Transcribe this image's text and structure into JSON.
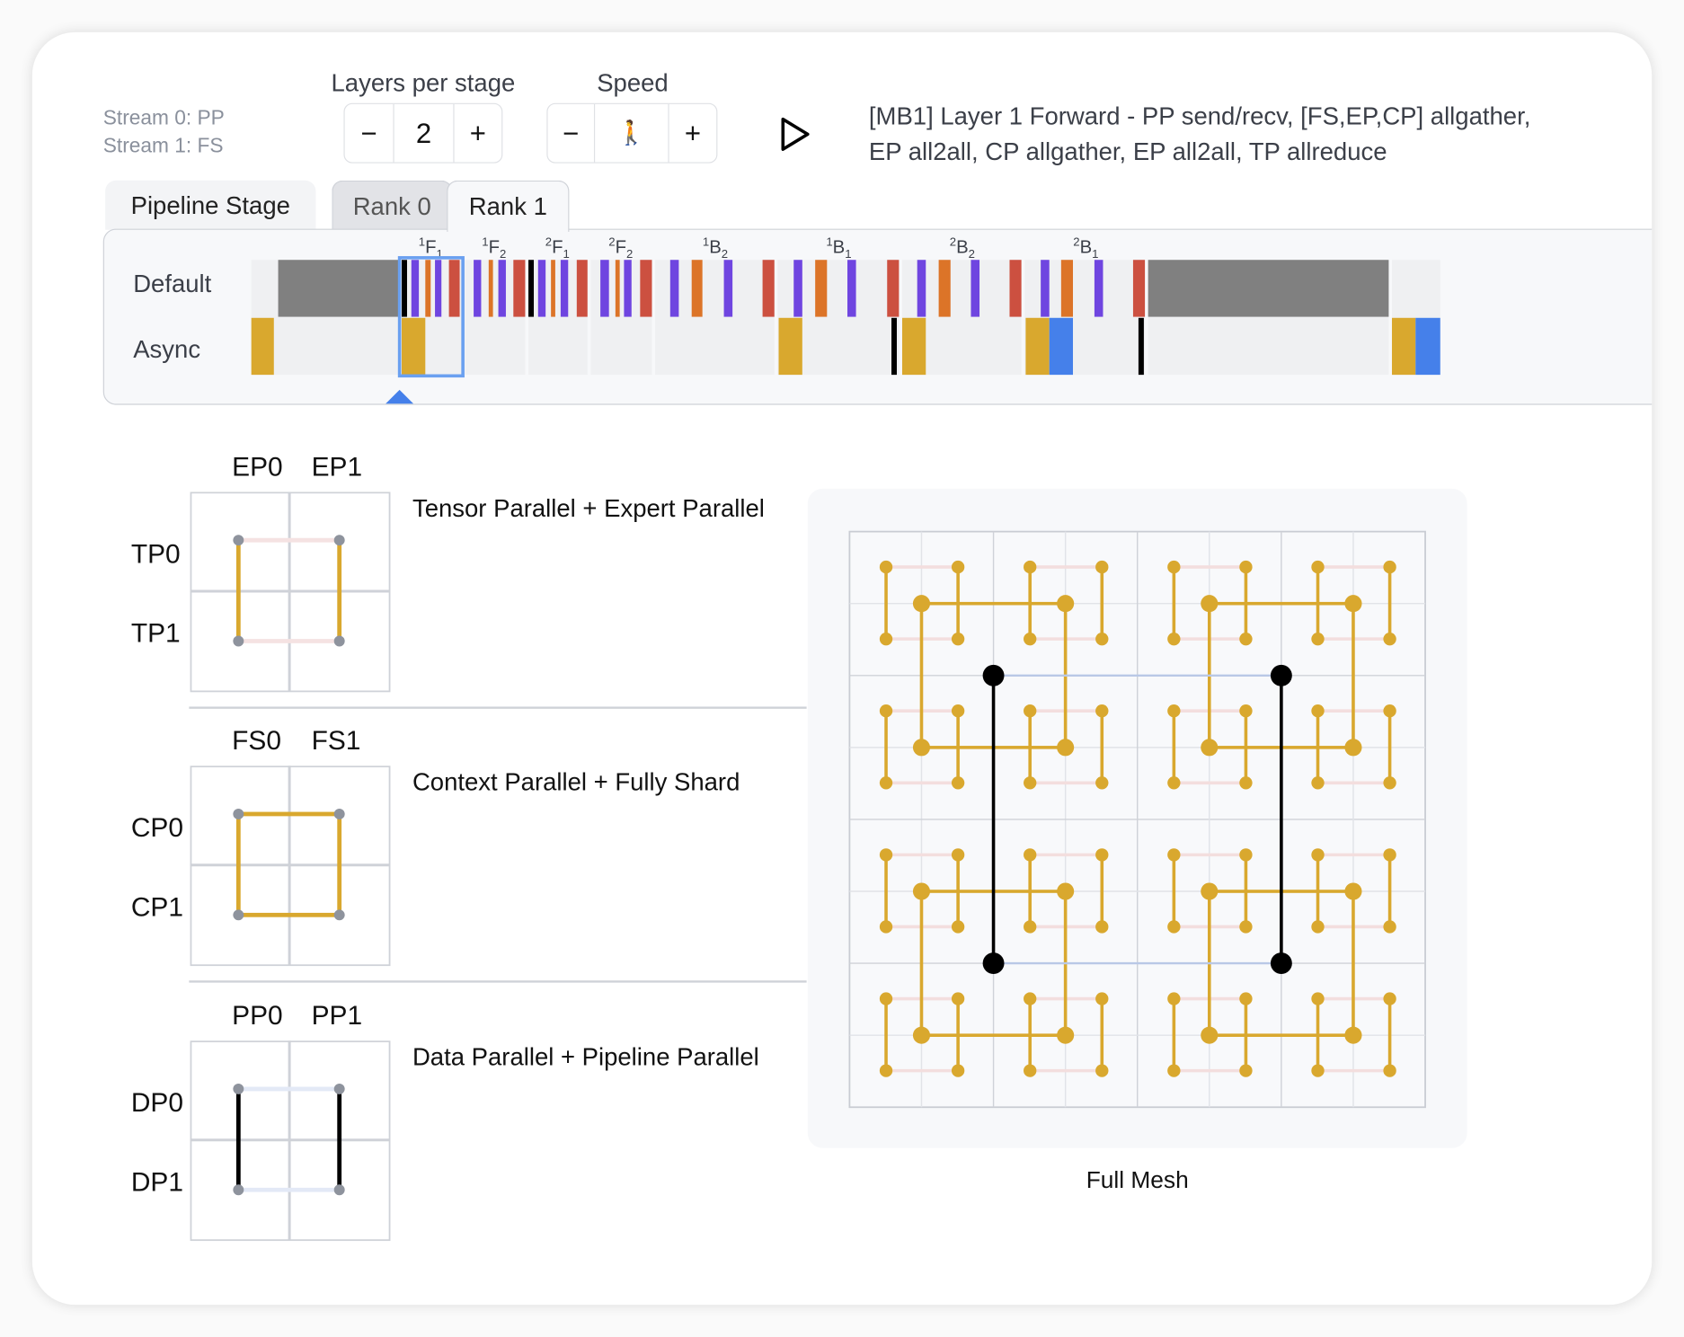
{
  "streams": [
    "Stream 0: PP",
    "Stream 1: FS"
  ],
  "layers": {
    "label": "Layers per stage",
    "minus": "−",
    "value": "2",
    "plus": "+"
  },
  "speed": {
    "label": "Speed",
    "minus": "−",
    "value": "🚶",
    "plus": "+"
  },
  "play_icon": "play-icon",
  "status": [
    "[MB1] Layer 1 Forward - PP send/recv, [FS,EP,CP] allgather,",
    "EP all2all, CP allgather, EP all2all, TP allreduce"
  ],
  "tabs": {
    "pipeline": "Pipeline Stage",
    "rank0": "Rank 0",
    "rank1": "Rank 1",
    "active": "Rank 1"
  },
  "timeline": {
    "rows": [
      "Default",
      "Async"
    ],
    "segments": [
      {
        "sup": "1",
        "base": "F",
        "sub": "1"
      },
      {
        "sup": "1",
        "base": "F",
        "sub": "2"
      },
      {
        "sup": "2",
        "base": "F",
        "sub": "1"
      },
      {
        "sup": "2",
        "base": "F",
        "sub": "2"
      },
      {
        "sup": "1",
        "base": "B",
        "sub": "2"
      },
      {
        "sup": "1",
        "base": "B",
        "sub": "1"
      },
      {
        "sup": "2",
        "base": "B",
        "sub": "2"
      },
      {
        "sup": "2",
        "base": "B",
        "sub": "1"
      }
    ],
    "colors": {
      "idle": "#808080",
      "purple": "#6f45e0",
      "orange": "#dc7428",
      "red": "#cc5040",
      "black": "#000000",
      "gold": "#d9a82e",
      "blue": "#4580ea"
    }
  },
  "diagrams": [
    {
      "cols": [
        "EP0",
        "EP1"
      ],
      "rows": [
        "TP0",
        "TP1"
      ],
      "title": "Tensor Parallel + Expert Parallel"
    },
    {
      "cols": [
        "FS0",
        "FS1"
      ],
      "rows": [
        "CP0",
        "CP1"
      ],
      "title": "Context Parallel + Fully Shard"
    },
    {
      "cols": [
        "PP0",
        "PP1"
      ],
      "rows": [
        "DP0",
        "DP1"
      ],
      "title": "Data Parallel + Pipeline Parallel"
    }
  ],
  "mesh": {
    "caption": "Full Mesh"
  }
}
